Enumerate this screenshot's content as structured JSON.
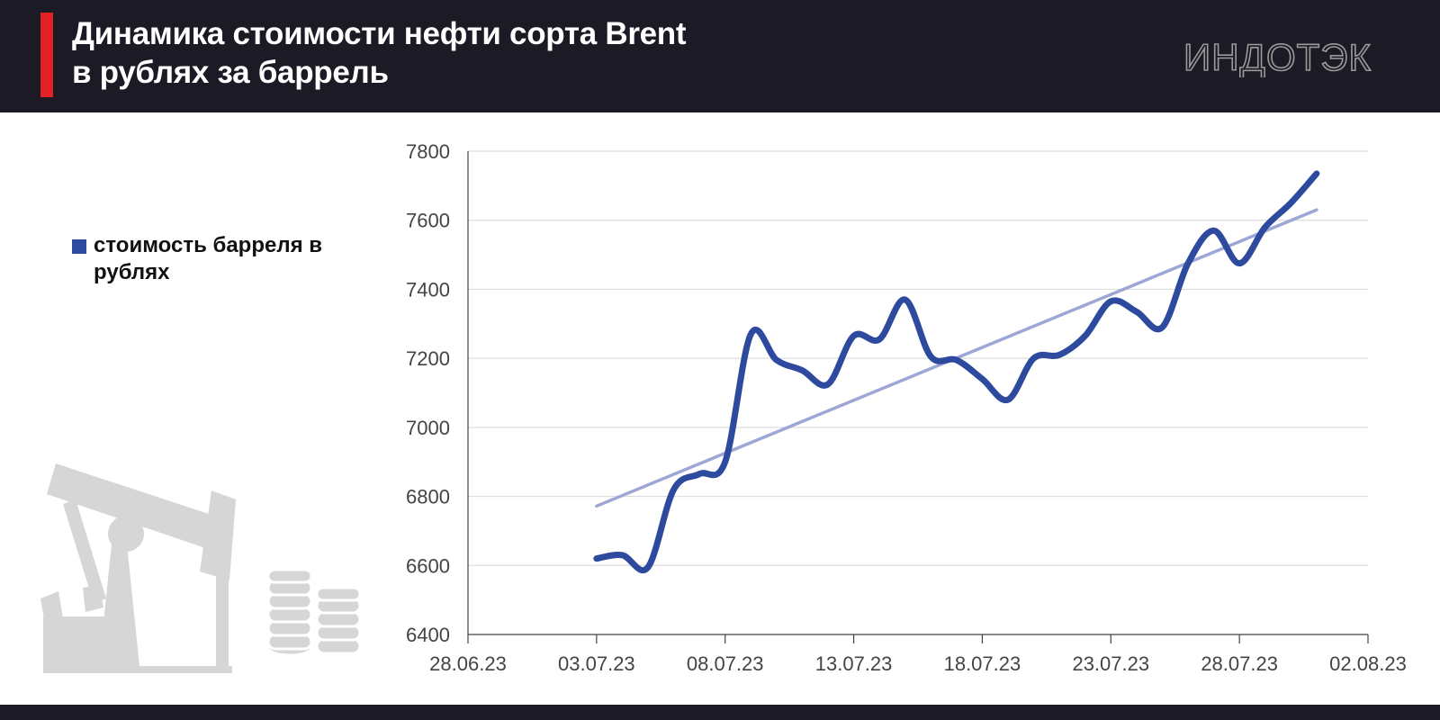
{
  "header": {
    "title_line1": "Динамика стоимости нефти сорта Brent",
    "title_line2": "в рублях за баррель",
    "logo_text": "ИНДОТЭК"
  },
  "colors": {
    "header_bg": "#1c1a24",
    "accent": "#e32227",
    "series": "#2d4a9e",
    "trend": "#9ea6d6",
    "grid": "#dddddd",
    "illustration": "#d6d6d6"
  },
  "legend": {
    "label": "стоимость барреля в рублях"
  },
  "icons": [
    "oil-pump-icon",
    "coin-stack-icon"
  ],
  "chart_data": {
    "type": "line",
    "title": "Динамика стоимости нефти сорта Brent в рублях за баррель",
    "xlabel": "",
    "ylabel": "",
    "x_tick_labels": [
      "28.06.23",
      "03.07.23",
      "08.07.23",
      "13.07.23",
      "18.07.23",
      "23.07.23",
      "28.07.23",
      "02.08.23"
    ],
    "y_ticks": [
      6400,
      6600,
      6800,
      7000,
      7200,
      7400,
      7600,
      7800
    ],
    "ylim": [
      6400,
      7800
    ],
    "xlim": [
      "28.06.23",
      "02.08.23"
    ],
    "grid": true,
    "legend_position": "left",
    "series": [
      {
        "name": "стоимость барреля в рублях",
        "x": [
          "03.07.23",
          "04.07.23",
          "05.07.23",
          "06.07.23",
          "07.07.23",
          "08.07.23",
          "09.07.23",
          "10.07.23",
          "11.07.23",
          "12.07.23",
          "13.07.23",
          "14.07.23",
          "15.07.23",
          "16.07.23",
          "17.07.23",
          "18.07.23",
          "19.07.23",
          "20.07.23",
          "21.07.23",
          "22.07.23",
          "23.07.23",
          "24.07.23",
          "25.07.23",
          "26.07.23",
          "27.07.23",
          "28.07.23",
          "29.07.23",
          "30.07.23",
          "31.07.23"
        ],
        "values": [
          6620,
          6630,
          6595,
          6820,
          6865,
          6900,
          7270,
          7195,
          7165,
          7125,
          7265,
          7255,
          7370,
          7205,
          7195,
          7140,
          7080,
          7200,
          7210,
          7265,
          7365,
          7335,
          7290,
          7475,
          7570,
          7475,
          7580,
          7650,
          7735
        ]
      },
      {
        "name": "trend",
        "x": [
          "03.07.23",
          "31.07.23"
        ],
        "values": [
          6772,
          7630
        ]
      }
    ]
  }
}
